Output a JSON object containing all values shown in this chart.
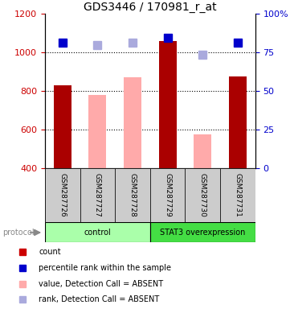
{
  "title": "GDS3446 / 170981_r_at",
  "samples": [
    "GSM287726",
    "GSM287727",
    "GSM287728",
    "GSM287729",
    "GSM287730",
    "GSM287731"
  ],
  "bar_values": [
    830,
    null,
    null,
    1060,
    null,
    875
  ],
  "bar_absent_values": [
    null,
    780,
    870,
    null,
    575,
    null
  ],
  "bar_color_present": "#aa0000",
  "bar_color_absent": "#ffaaaa",
  "percentile_present": [
    1050,
    null,
    null,
    1075,
    null,
    1050
  ],
  "percentile_absent": [
    null,
    1040,
    1050,
    null,
    990,
    null
  ],
  "percentile_color_present": "#0000cc",
  "percentile_color_absent": "#aaaadd",
  "ylim_left": [
    400,
    1200
  ],
  "ylim_right": [
    0,
    100
  ],
  "yticks_left": [
    400,
    600,
    800,
    1000,
    1200
  ],
  "yticks_right": [
    0,
    25,
    50,
    75,
    100
  ],
  "ytick_labels_right": [
    "0",
    "25",
    "50",
    "75",
    "100%"
  ],
  "groups": [
    {
      "label": "control",
      "color": "#aaffaa",
      "start": 0,
      "end": 3
    },
    {
      "label": "STAT3 overexpression",
      "color": "#44dd44",
      "start": 3,
      "end": 6
    }
  ],
  "protocol_label": "protocol",
  "legend_items": [
    {
      "label": "count",
      "color": "#cc0000"
    },
    {
      "label": "percentile rank within the sample",
      "color": "#0000cc"
    },
    {
      "label": "value, Detection Call = ABSENT",
      "color": "#ffaaaa"
    },
    {
      "label": "rank, Detection Call = ABSENT",
      "color": "#aaaadd"
    }
  ],
  "bar_width": 0.5,
  "marker_size": 7,
  "background_color": "#ffffff",
  "tick_label_color_left": "#cc0000",
  "tick_label_color_right": "#0000cc",
  "xlabel_area_bg": "#cccccc",
  "grid_lines": [
    600,
    800,
    1000
  ],
  "grid_color": "#000000",
  "grid_style": ":"
}
